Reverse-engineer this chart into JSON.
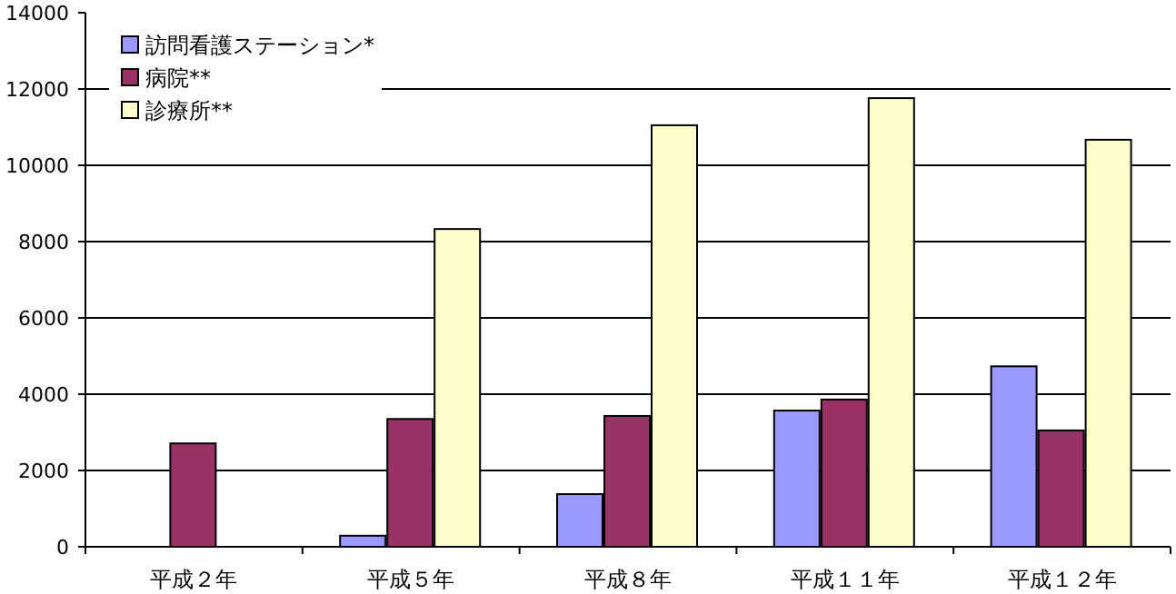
{
  "chart_data": {
    "type": "bar",
    "categories": [
      "平成２年",
      "平成５年",
      "平成８年",
      "平成１１年",
      "平成１２年"
    ],
    "series": [
      {
        "name": "訪問看護ステーション*",
        "color": "#9999ff",
        "values": [
          null,
          290,
          1380,
          3570,
          4730
        ]
      },
      {
        "name": "病院**",
        "color": "#993366",
        "values": [
          2710,
          3350,
          3430,
          3860,
          3050
        ]
      },
      {
        "name": "診療所**",
        "color": "#ffffcc",
        "values": [
          null,
          8330,
          11050,
          11760,
          10670
        ]
      }
    ],
    "ylim": [
      0,
      14000
    ],
    "yticks": [
      0,
      2000,
      4000,
      6000,
      8000,
      10000,
      12000,
      14000
    ],
    "grid": "y",
    "legend": "top left"
  }
}
